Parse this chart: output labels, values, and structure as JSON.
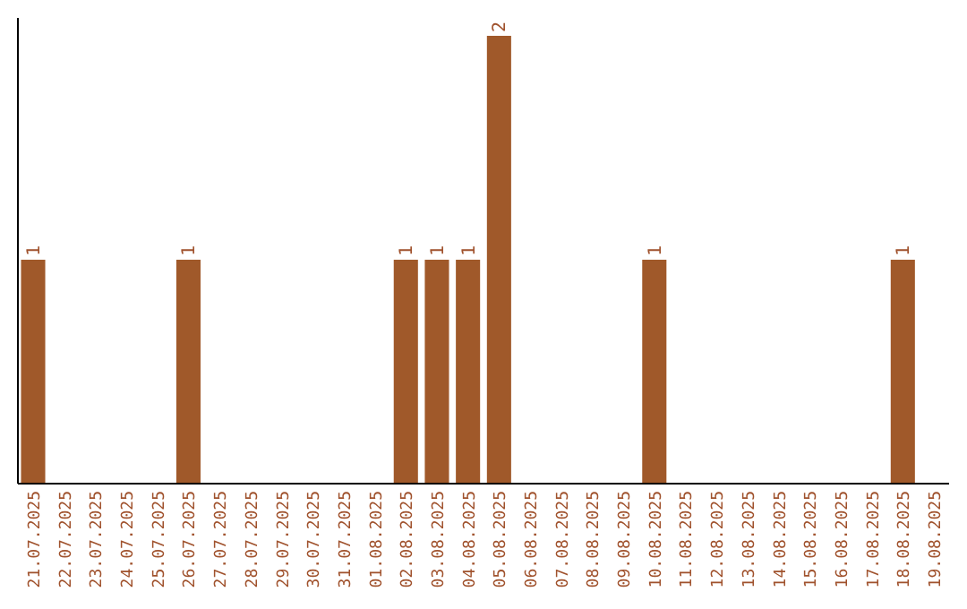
{
  "chart_data": {
    "type": "bar",
    "categories": [
      "21.07.2025",
      "22.07.2025",
      "23.07.2025",
      "24.07.2025",
      "25.07.2025",
      "26.07.2025",
      "27.07.2025",
      "28.07.2025",
      "29.07.2025",
      "30.07.2025",
      "31.07.2025",
      "01.08.2025",
      "02.08.2025",
      "03.08.2025",
      "04.08.2025",
      "05.08.2025",
      "06.08.2025",
      "07.08.2025",
      "08.08.2025",
      "09.08.2025",
      "10.08.2025",
      "11.08.2025",
      "12.08.2025",
      "13.08.2025",
      "14.08.2025",
      "15.08.2025",
      "16.08.2025",
      "17.08.2025",
      "18.08.2025",
      "19.08.2025"
    ],
    "values": [
      1,
      0,
      0,
      0,
      0,
      1,
      0,
      0,
      0,
      0,
      0,
      0,
      1,
      1,
      1,
      2,
      0,
      0,
      0,
      0,
      1,
      0,
      0,
      0,
      0,
      0,
      0,
      0,
      1,
      0
    ],
    "value_labels": [
      "1",
      null,
      null,
      null,
      null,
      "1",
      null,
      null,
      null,
      null,
      null,
      null,
      "1",
      "1",
      "1",
      "2",
      null,
      null,
      null,
      null,
      "1",
      null,
      null,
      null,
      null,
      null,
      null,
      null,
      "1",
      null
    ],
    "color": "#a0592a",
    "tick_labels": "x"
  }
}
